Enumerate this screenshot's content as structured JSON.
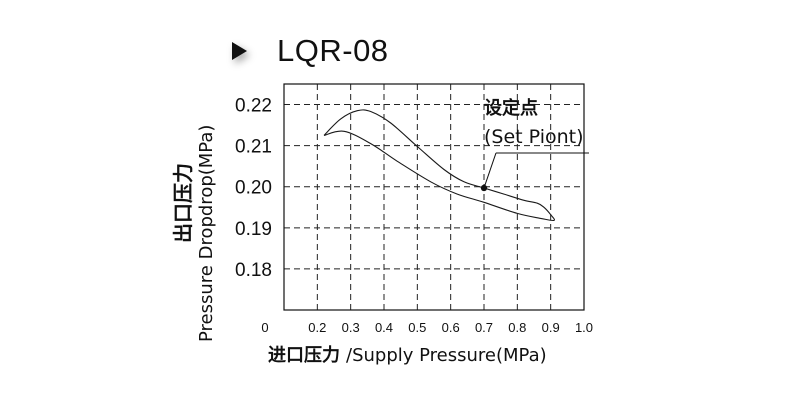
{
  "header": {
    "title": "LQR-08",
    "marker_icon": "play-triangle-icon"
  },
  "chart_data": {
    "type": "line",
    "xlabel": {
      "cn": "进口压力",
      "en": "/Supply Pressure(MPa)"
    },
    "ylabel": {
      "cn": "出口压力",
      "en": "Pressure Dropdrop(MPa)"
    },
    "x_ticks": [
      "0",
      "0.2",
      "0.3",
      "0.4",
      "0.5",
      "0.6",
      "0.7",
      "0.8",
      "0.9",
      "1.0"
    ],
    "y_ticks": [
      "0.18",
      "0.19",
      "0.20",
      "0.21",
      "0.22"
    ],
    "xlim": [
      0.1,
      1.0
    ],
    "ylim": [
      0.17,
      0.225
    ],
    "grid": true,
    "series": [
      {
        "values": [
          [
            0.22,
            0.2125
          ],
          [
            0.27,
            0.2165
          ],
          [
            0.32,
            0.2185
          ],
          [
            0.36,
            0.2183
          ],
          [
            0.42,
            0.2155
          ],
          [
            0.5,
            0.2098
          ],
          [
            0.58,
            0.2042
          ],
          [
            0.64,
            0.2012
          ],
          [
            0.7,
            0.1997
          ],
          [
            0.76,
            0.1982
          ],
          [
            0.82,
            0.1967
          ],
          [
            0.86,
            0.196
          ],
          [
            0.88,
            0.195
          ],
          [
            0.9,
            0.1932
          ],
          [
            0.91,
            0.1918
          ],
          [
            0.87,
            0.1923
          ],
          [
            0.8,
            0.1935
          ],
          [
            0.7,
            0.1962
          ],
          [
            0.62,
            0.1982
          ],
          [
            0.54,
            0.2012
          ],
          [
            0.44,
            0.2062
          ],
          [
            0.36,
            0.2105
          ],
          [
            0.28,
            0.2135
          ],
          [
            0.22,
            0.2125
          ]
        ]
      }
    ],
    "set_point": {
      "x": 0.7,
      "y": 0.1997,
      "label_cn": "设定点",
      "label_en": "(Set Piont)"
    },
    "colors": {
      "line": "#1a1a1a",
      "grid": "#222222",
      "border": "#111111"
    }
  }
}
